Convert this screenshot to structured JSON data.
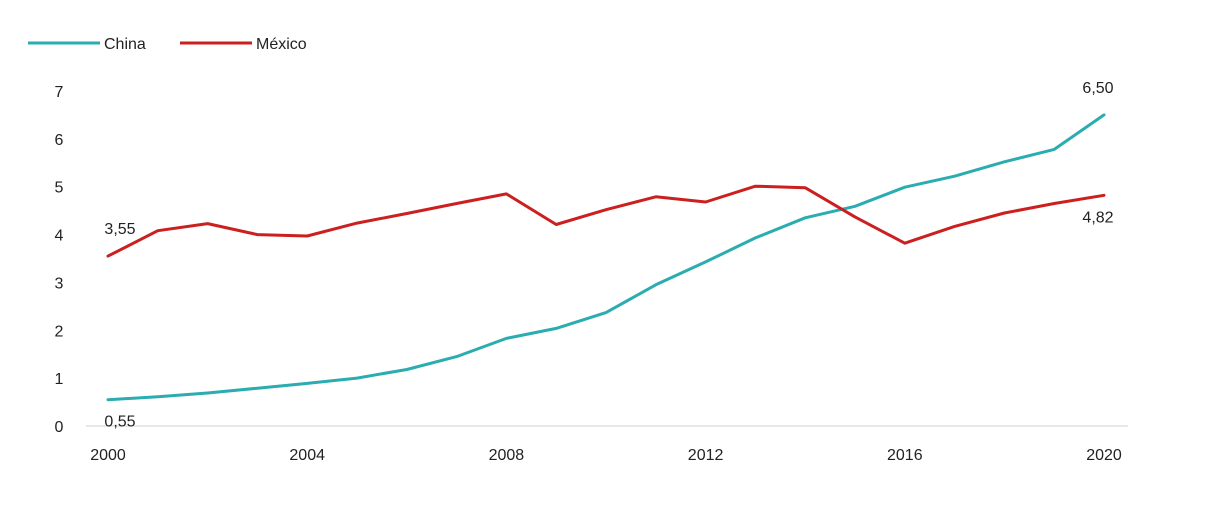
{
  "chart_data": {
    "type": "line",
    "title": "",
    "xlabel": "",
    "ylabel": "",
    "x": [
      2000,
      2001,
      2002,
      2003,
      2004,
      2005,
      2006,
      2007,
      2008,
      2009,
      2010,
      2011,
      2012,
      2013,
      2014,
      2015,
      2016,
      2017,
      2018,
      2019,
      2020
    ],
    "series": [
      {
        "name": "China",
        "color": "#2aacb0",
        "values": [
          0.55,
          0.61,
          0.69,
          0.79,
          0.89,
          1.0,
          1.18,
          1.45,
          1.83,
          2.04,
          2.37,
          2.95,
          3.43,
          3.93,
          4.35,
          4.59,
          4.99,
          5.22,
          5.52,
          5.78,
          6.5
        ]
      },
      {
        "name": "México",
        "color": "#cc1f1f",
        "values": [
          3.55,
          4.08,
          4.23,
          4.0,
          3.97,
          4.24,
          4.44,
          4.65,
          4.85,
          4.21,
          4.52,
          4.79,
          4.68,
          5.01,
          4.98,
          4.37,
          3.82,
          4.17,
          4.45,
          4.65,
          4.82
        ]
      }
    ],
    "xticks": [
      "2000",
      "2004",
      "2008",
      "2012",
      "2016",
      "2020"
    ],
    "yticks": [
      "0",
      "1",
      "2",
      "3",
      "4",
      "5",
      "6",
      "7"
    ],
    "ylim": [
      0,
      7
    ],
    "xlim": [
      2000,
      2020
    ],
    "grid": false,
    "legend_position": "top-left",
    "annotations": [
      {
        "text": "3,55",
        "x": 2000,
        "y": 3.55,
        "series": "México",
        "placement": "above"
      },
      {
        "text": "0,55",
        "x": 2000,
        "y": 0.55,
        "series": "China",
        "placement": "below"
      },
      {
        "text": "6,50",
        "x": 2020,
        "y": 6.5,
        "series": "China",
        "placement": "above"
      },
      {
        "text": "4,82",
        "x": 2020,
        "y": 4.82,
        "series": "México",
        "placement": "below"
      }
    ]
  }
}
